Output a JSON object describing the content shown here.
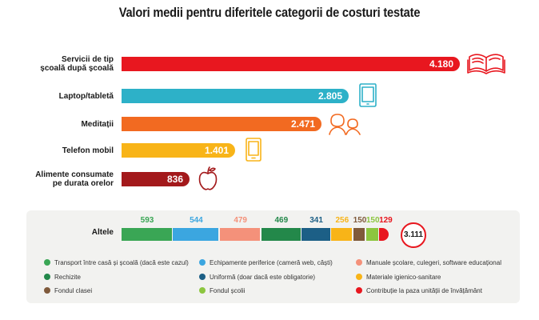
{
  "title": "Valori medii pentru diferitele categorii de costuri testate",
  "chart_data": [
    {
      "type": "bar",
      "orientation": "horizontal",
      "categories": [
        "Servicii de tip școală după școală",
        "Laptop/tabletă",
        "Meditații",
        "Telefon mobil",
        "Alimente consumate pe durata orelor"
      ],
      "category_lines": [
        [
          "Servicii de tip",
          "școală după școală"
        ],
        [
          "Laptop/tabletă"
        ],
        [
          "Meditații"
        ],
        [
          "Telefon mobil"
        ],
        [
          "Alimente consumate",
          "pe durata orelor"
        ]
      ],
      "values": [
        4180,
        2805,
        2471,
        1401,
        836
      ],
      "value_labels": [
        "4.180",
        "2.805",
        "2.471",
        "1.401",
        "836"
      ],
      "colors": [
        "#e8171f",
        "#2db1c8",
        "#f26a21",
        "#f8b418",
        "#a3191b"
      ],
      "icons": [
        "open-book-icon",
        "tablet-icon",
        "tutoring-people-icon",
        "smartphone-icon",
        "apple-icon"
      ],
      "xlim": [
        0,
        4180
      ]
    },
    {
      "type": "bar",
      "orientation": "stacked-horizontal",
      "category": "Altele",
      "total_label": "3.111",
      "total": 3111,
      "series": [
        {
          "name": "Transport între casă și școală (dacă este cazul)",
          "value": 593,
          "label": "593",
          "color": "#3aa655"
        },
        {
          "name": "Echipamente periferice (cameră web, căști)",
          "value": 544,
          "label": "544",
          "color": "#3ba6e0"
        },
        {
          "name": "Manuale școlare, culegeri, software educațional",
          "value": 479,
          "label": "479",
          "color": "#f4917a"
        },
        {
          "name": "Rechizite",
          "value": 469,
          "label": "469",
          "color": "#23884a"
        },
        {
          "name": "Uniformă (doar dacă este obligatorie)",
          "value": 341,
          "label": "341",
          "color": "#1c5f86"
        },
        {
          "name": "Materiale igienico-sanitare",
          "value": 256,
          "label": "256",
          "color": "#f8b418"
        },
        {
          "name": "Fondul clasei",
          "value": 150,
          "label": "150",
          "color": "#7f5a3b"
        },
        {
          "name": "Fondul școlii",
          "value": 150,
          "label": "150",
          "color": "#8cc63f"
        },
        {
          "name": "Contribuție la paza unității de învățământ",
          "value": 129,
          "label": "129",
          "color": "#e8171f"
        }
      ],
      "legend_order": [
        0,
        3,
        6,
        1,
        4,
        7,
        2,
        5,
        8
      ],
      "legend_position": "bottom"
    }
  ]
}
